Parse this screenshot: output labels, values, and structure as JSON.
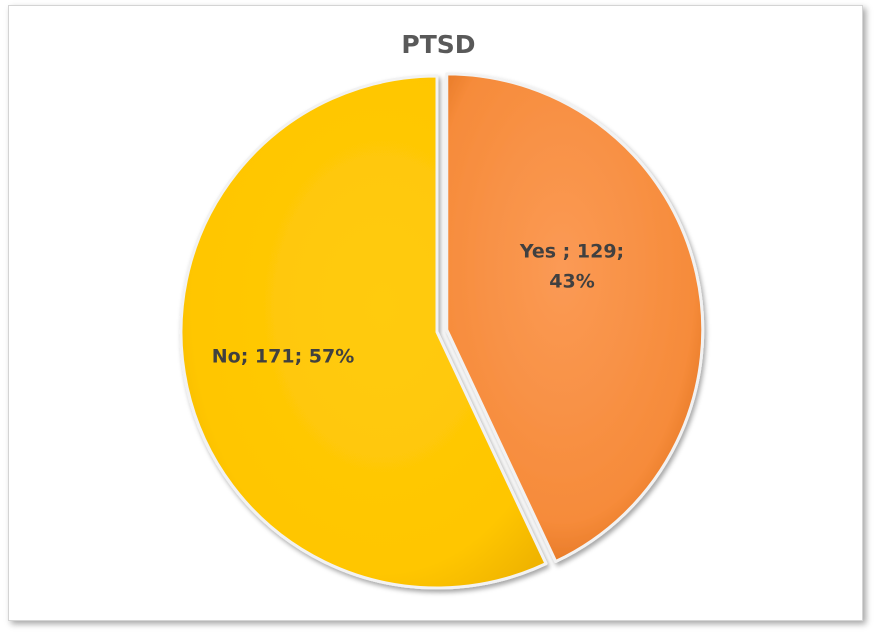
{
  "chart_data": {
    "type": "pie",
    "title": "PTSD",
    "slices": [
      {
        "label": "Yes ",
        "value": 129,
        "percent": 43,
        "color": "#F79646",
        "exploded": true,
        "label_lines": [
          "Yes ; 129;",
          "43%"
        ]
      },
      {
        "label": "No",
        "value": 171,
        "percent": 57,
        "color": "#FFC000",
        "exploded": false,
        "label_lines": [
          "No; 171; 57%"
        ]
      }
    ],
    "start_angle_deg": 0,
    "direction": "clockwise",
    "legend": "none"
  }
}
